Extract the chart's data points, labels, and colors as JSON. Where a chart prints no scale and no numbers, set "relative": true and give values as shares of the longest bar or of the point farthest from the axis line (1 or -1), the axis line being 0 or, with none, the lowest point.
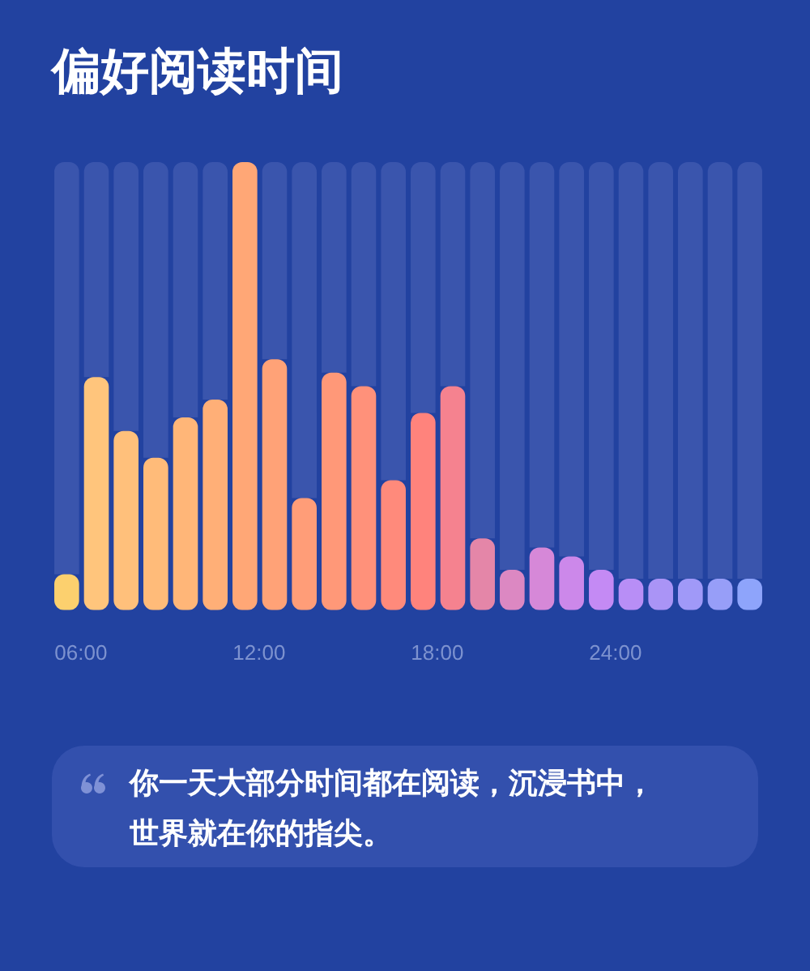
{
  "chart_data": {
    "type": "bar",
    "title": "偏好阅读时间",
    "relative": true,
    "stacked": true,
    "categories": [
      "06:00",
      null,
      null,
      null,
      null,
      null,
      "12:00",
      null,
      null,
      null,
      null,
      null,
      "18:00",
      null,
      null,
      null,
      null,
      null,
      "24:00",
      null,
      null,
      null,
      null,
      null
    ],
    "series": [
      {
        "colors": [
          "#fcd06e",
          "#ffc57c",
          "#ffc07b",
          "#ffbb79",
          "#ffb678",
          "#ffaf77",
          "#ffa776",
          "#ffa277",
          "#ff9d78",
          "#ff9878",
          "#ff917a",
          "#ff8a7b",
          "#ff837c",
          "#f5828f",
          "#e486a8",
          "#dc88c2",
          "#d688d8",
          "#cc88ea",
          "#c48af4",
          "#b88ef6",
          "#aa94f6",
          "#a099f8",
          "#979ef8",
          "#8ea4fb"
        ],
        "values": [
          0.08,
          0.52,
          0.4,
          0.34,
          0.43,
          0.47,
          1,
          0.56,
          0.25,
          0.53,
          0.5,
          0.29,
          0.44,
          0.5,
          0.16,
          0.09,
          0.14,
          0.12,
          0.09,
          0.07,
          0.07,
          0.07,
          0.07,
          0.07
        ]
      },
      {
        "color": "#3a55ad",
        "values": [
          0.92,
          0.48,
          0.6,
          0.66,
          0.57,
          0.53,
          null,
          0.44,
          0.75,
          0.47,
          0.5,
          0.71,
          0.56,
          0.5,
          0.84,
          0.91,
          0.86,
          0.88,
          0.91,
          0.93,
          0.93,
          0.93,
          0.93,
          0.93
        ]
      }
    ],
    "annotations": [
      "你一天大部分时间都在阅读，沉浸书中，世界就在你的指尖。"
    ]
  }
}
